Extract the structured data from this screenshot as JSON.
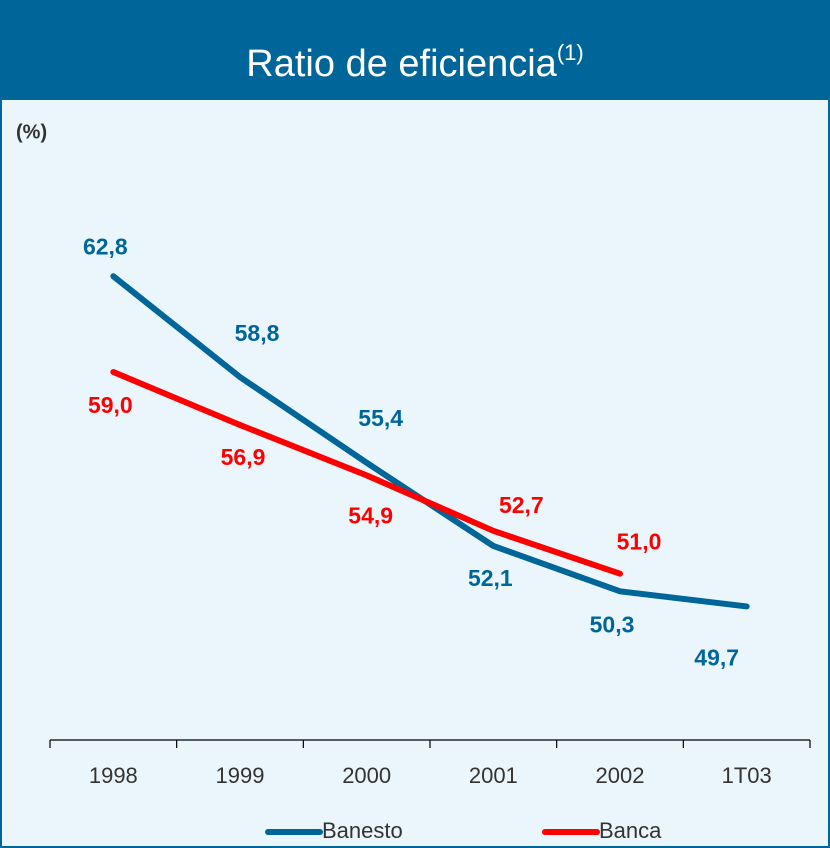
{
  "chart_data": {
    "type": "line",
    "title": "Ratio de eficiencia",
    "title_note": "(1)",
    "y_label": "(%)",
    "categories": [
      "1998",
      "1999",
      "2000",
      "2001",
      "2002",
      "1T03"
    ],
    "series": [
      {
        "name": "Banesto",
        "color": "#006699",
        "values": [
          62.8,
          58.8,
          55.4,
          52.1,
          50.3,
          49.7
        ],
        "value_labels": [
          "62,8",
          "58,8",
          "55,4",
          "52,1",
          "50,3",
          "49,7"
        ]
      },
      {
        "name": "Banca",
        "color": "#ff0000",
        "values": [
          59.0,
          56.9,
          54.9,
          52.7,
          51.0,
          null
        ],
        "value_labels": [
          "59,0",
          "56,9",
          "54,9",
          "52,7",
          "51,0",
          null
        ]
      }
    ],
    "ylim": [
      44.4,
      69.0
    ]
  }
}
